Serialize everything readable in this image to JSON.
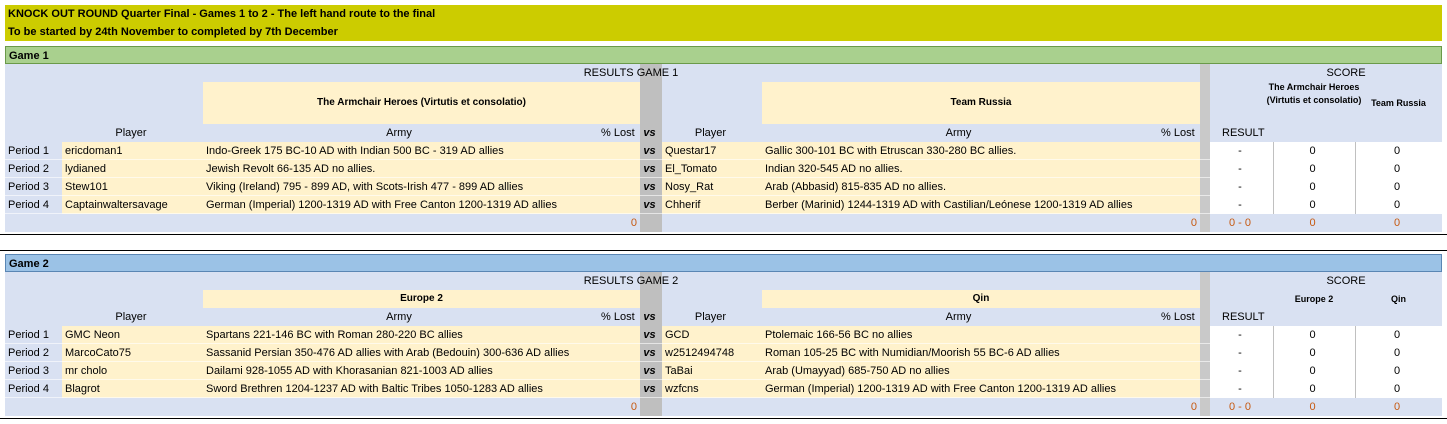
{
  "title": {
    "line1": "KNOCK OUT ROUND Quarter Final - Games 1 to 2  - The left hand route to the final",
    "line2": "To be started by 24th November to completed by 7th December"
  },
  "games": [
    {
      "label": "Game 1",
      "results_title": "RESULTS GAME 1",
      "team_a": "The Armchair Heroes (Virtutis et consolatio)",
      "team_b": "Team Russia",
      "score_title": "SCORE",
      "score_team_a": "The Armchair Heroes (Virtutis et consolatio)",
      "score_team_b": "Team Russia",
      "headers": {
        "player": "Player",
        "army": "Army",
        "lost": "% Lost",
        "vs": "vs",
        "result": "RESULT"
      },
      "rows": [
        {
          "period": "Period 1",
          "player_a": "ericdoman1",
          "army_a": "Indo-Greek 175 BC-10 AD with Indian 500 BC - 319 AD allies",
          "vs": "vs",
          "player_b": "Questar17",
          "army_b": "Gallic 300-101 BC with Etruscan 330-280 BC allies.",
          "result": "-",
          "score_a": "0",
          "score_b": "0"
        },
        {
          "period": "Period 2",
          "player_a": "lydianed",
          "army_a": "Jewish Revolt 66-135 AD no allies.",
          "vs": "vs",
          "player_b": "El_Tomato",
          "army_b": "Indian 320-545 AD no allies.",
          "result": "-",
          "score_a": "0",
          "score_b": "0"
        },
        {
          "period": "Period 3",
          "player_a": "Stew101",
          "army_a": "Viking (Ireland) 795 - 899 AD, with Scots-Irish 477 - 899 AD allies",
          "vs": "vs",
          "player_b": "Nosy_Rat",
          "army_b": "Arab (Abbasid) 815-835 AD no allies.",
          "result": "-",
          "score_a": "0",
          "score_b": "0"
        },
        {
          "period": "Period 4",
          "player_a": "Captainwaltersavage",
          "army_a": "German (Imperial) 1200-1319 AD with Free Canton 1200-1319 AD allies",
          "vs": "vs",
          "player_b": "Chherif",
          "army_b": "Berber (Marinid) 1244-1319 AD with Castilian/Leónese 1200-1319 AD allies",
          "result": "-",
          "score_a": "0",
          "score_b": "0"
        }
      ],
      "totals": {
        "lost_a": "0",
        "lost_b": "0",
        "result": "0 - 0",
        "score_a": "0",
        "score_b": "0"
      }
    },
    {
      "label": "Game 2",
      "results_title": "RESULTS GAME 2",
      "team_a": "Europe 2",
      "team_b": "Qin",
      "score_title": "SCORE",
      "score_team_a": "Europe 2",
      "score_team_b": "Qin",
      "headers": {
        "player": "Player",
        "army": "Army",
        "lost": "% Lost",
        "vs": "vs",
        "result": "RESULT"
      },
      "rows": [
        {
          "period": "Period 1",
          "player_a": "GMC Neon",
          "army_a": "Spartans 221-146 BC with Roman 280-220 BC allies",
          "vs": "vs",
          "player_b": "GCD",
          "army_b": "Ptolemaic 166-56 BC no allies",
          "result": "-",
          "score_a": "0",
          "score_b": "0"
        },
        {
          "period": "Period 2",
          "player_a": "MarcoCato75",
          "army_a": "Sassanid Persian 350-476 AD allies with Arab (Bedouin) 300-636 AD allies",
          "vs": "vs",
          "player_b": "w2512494748",
          "army_b": "Roman 105-25 BC with Numidian/Moorish 55 BC-6 AD allies",
          "result": "-",
          "score_a": "0",
          "score_b": "0"
        },
        {
          "period": "Period 3",
          "player_a": "mr cholo",
          "army_a": "Dailami 928-1055 AD with Khorasanian 821-1003 AD allies",
          "vs": "vs",
          "player_b": "TaBai",
          "army_b": "Arab (Umayyad) 685-750 AD no allies",
          "result": "-",
          "score_a": "0",
          "score_b": "0"
        },
        {
          "period": "Period 4",
          "player_a": "Blagrot",
          "army_a": "Sword Brethren 1204-1237 AD with Baltic Tribes 1050-1283 AD allies",
          "vs": "vs",
          "player_b": "wzfcns",
          "army_b": "German (Imperial) 1200-1319 AD with Free Canton 1200-1319 AD allies",
          "result": "-",
          "score_a": "0",
          "score_b": "0"
        }
      ],
      "totals": {
        "lost_a": "0",
        "lost_b": "0",
        "result": "0 - 0",
        "score_a": "0",
        "score_b": "0"
      }
    }
  ]
}
